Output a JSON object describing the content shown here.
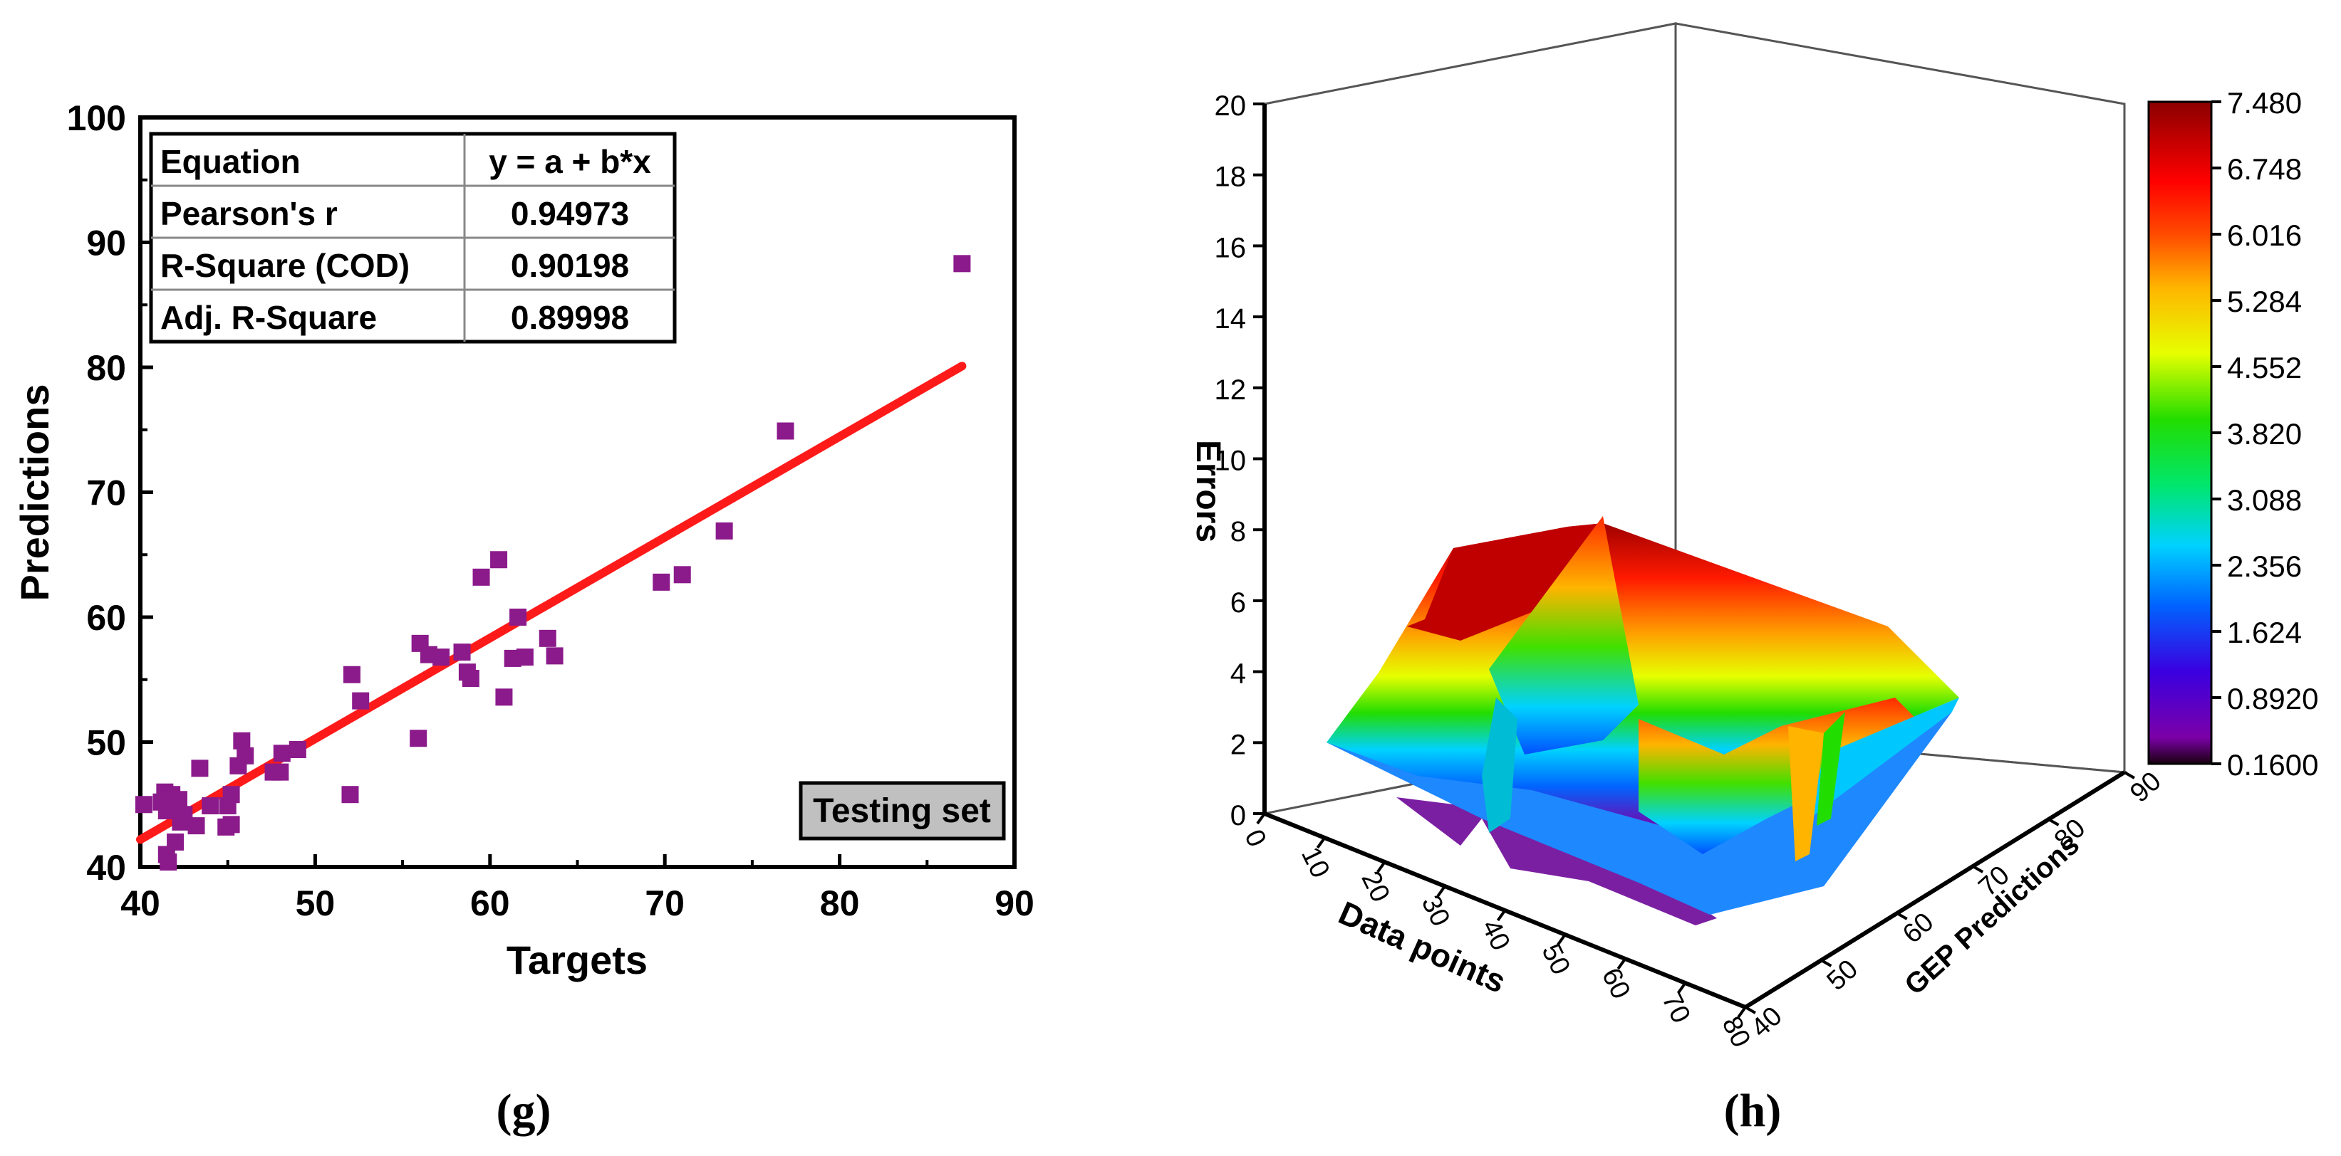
{
  "chart_data": [
    {
      "panel": "(g)",
      "type": "scatter",
      "title": "",
      "xlabel": "Targets",
      "ylabel": "Predictions",
      "xlim": [
        40,
        90
      ],
      "ylim": [
        40,
        100
      ],
      "xticks": [
        "40",
        "50",
        "60",
        "70",
        "80",
        "90"
      ],
      "yticks": [
        "40",
        "50",
        "60",
        "70",
        "80",
        "90",
        "100"
      ],
      "marker_color": "#8B1A8B",
      "fit_line_color": "#FF1A1A",
      "legend_label": "Testing set",
      "stats_table": {
        "header": [
          "Equation",
          "y = a + b*x"
        ],
        "rows": [
          [
            "Pearson's r",
            "0.94973"
          ],
          [
            "R-Square (COD)",
            "0.90198"
          ],
          [
            "Adj. R-Square",
            "0.89998"
          ]
        ]
      },
      "fit_line": {
        "x": [
          40,
          87
        ],
        "y": [
          42.2,
          80.1
        ]
      },
      "points": [
        [
          40.2,
          45.0
        ],
        [
          41.2,
          45.2
        ],
        [
          41.4,
          46.0
        ],
        [
          41.5,
          44.5
        ],
        [
          41.5,
          41.0
        ],
        [
          41.6,
          40.4
        ],
        [
          41.8,
          45.8
        ],
        [
          42.0,
          42.0
        ],
        [
          42.1,
          44.8
        ],
        [
          42.2,
          45.4
        ],
        [
          42.3,
          43.6
        ],
        [
          42.5,
          44.2
        ],
        [
          43.2,
          43.3
        ],
        [
          43.4,
          47.9
        ],
        [
          44.0,
          44.9
        ],
        [
          44.9,
          43.2
        ],
        [
          45.0,
          44.9
        ],
        [
          45.2,
          45.8
        ],
        [
          45.2,
          43.4
        ],
        [
          45.6,
          48.1
        ],
        [
          45.8,
          50.1
        ],
        [
          46.0,
          48.9
        ],
        [
          47.6,
          47.6
        ],
        [
          48.0,
          47.6
        ],
        [
          48.1,
          49.1
        ],
        [
          49.0,
          49.4
        ],
        [
          52.0,
          45.8
        ],
        [
          52.1,
          55.4
        ],
        [
          52.6,
          53.3
        ],
        [
          55.9,
          50.3
        ],
        [
          56.0,
          57.9
        ],
        [
          56.5,
          57.0
        ],
        [
          57.2,
          56.8
        ],
        [
          58.4,
          57.2
        ],
        [
          58.7,
          55.6
        ],
        [
          58.9,
          55.1
        ],
        [
          59.5,
          63.2
        ],
        [
          60.5,
          64.6
        ],
        [
          60.8,
          53.6
        ],
        [
          61.3,
          56.7
        ],
        [
          61.6,
          60.0
        ],
        [
          62.0,
          56.8
        ],
        [
          63.3,
          58.3
        ],
        [
          63.7,
          56.9
        ],
        [
          69.8,
          62.8
        ],
        [
          71.0,
          63.4
        ],
        [
          73.4,
          66.9
        ],
        [
          76.9,
          74.9
        ],
        [
          87.0,
          88.3
        ]
      ]
    },
    {
      "panel": "(h)",
      "type": "surface3d",
      "title": "",
      "xlabel": "Data points",
      "ylabel": "GEP Predictions",
      "zlabel": "Errors",
      "xlim": [
        0,
        80
      ],
      "ylim": [
        40,
        90
      ],
      "zlim": [
        0,
        20
      ],
      "xticks": [
        "0",
        "10",
        "20",
        "30",
        "40",
        "50",
        "60",
        "70",
        "80"
      ],
      "yticks": [
        "40",
        "50",
        "60",
        "70",
        "80",
        "90"
      ],
      "zticks": [
        "0",
        "2",
        "4",
        "6",
        "8",
        "10",
        "12",
        "14",
        "16",
        "18",
        "20"
      ],
      "colorbar": {
        "ticks": [
          "0.1600",
          "0.8920",
          "1.624",
          "2.356",
          "3.088",
          "3.820",
          "4.552",
          "5.284",
          "6.016",
          "6.748",
          "7.480"
        ],
        "colors": [
          "#1a0010",
          "#7b00a8",
          "#3a00e0",
          "#0064ff",
          "#00d2ff",
          "#00e66e",
          "#22dd00",
          "#e6ff00",
          "#ffb400",
          "#ff4a00",
          "#ff0000",
          "#8b0000"
        ]
      },
      "surface_samples": [
        {
          "x": 5,
          "y": 45,
          "z": 2.0
        },
        {
          "x": 10,
          "y": 60,
          "z": 8.0
        },
        {
          "x": 20,
          "y": 65,
          "z": 7.5
        },
        {
          "x": 30,
          "y": 50,
          "z": 5.0
        },
        {
          "x": 40,
          "y": 55,
          "z": 3.5
        },
        {
          "x": 50,
          "y": 70,
          "z": 4.0
        },
        {
          "x": 60,
          "y": 75,
          "z": 3.0
        },
        {
          "x": 70,
          "y": 85,
          "z": 1.5
        },
        {
          "x": 80,
          "y": 90,
          "z": 0.5
        }
      ]
    }
  ],
  "labels": {
    "panel_g": "(g)",
    "panel_h": "(h)"
  }
}
